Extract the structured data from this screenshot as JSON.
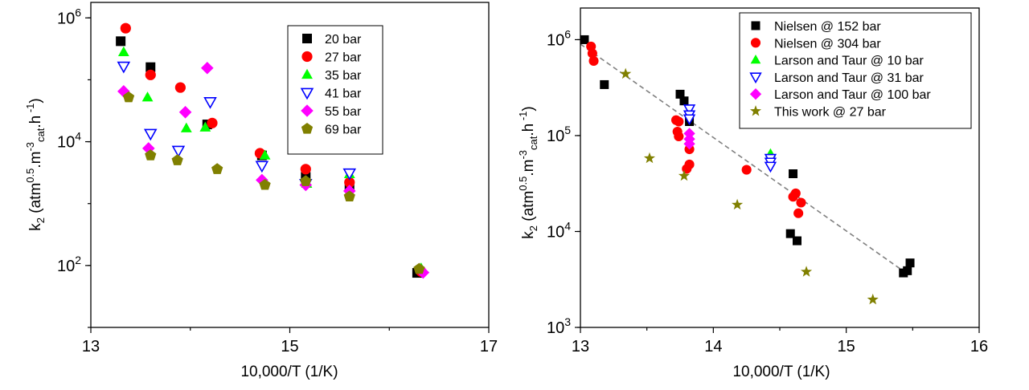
{
  "chart_data": [
    {
      "type": "scatter",
      "title": "",
      "xlabel": "10,000/T (1/K)",
      "ylabel": {
        "main": "k",
        "sub": "2",
        "paren_open": " (atm",
        "exp1": "0.5",
        "mid1": ".m",
        "exp2": "-3",
        "sub2": "cat",
        "mid2": ".h",
        "exp3": " -1",
        "paren_close": ")"
      },
      "x_range": [
        13,
        17
      ],
      "y_range_log": [
        1.0,
        6.25
      ],
      "y_scale": "log",
      "x_ticks": [
        "13",
        "15",
        "17"
      ],
      "y_ticks": [
        {
          "base": "10",
          "exp": "2",
          "log": 2
        },
        {
          "base": "10",
          "exp": "4",
          "log": 4
        },
        {
          "base": "10",
          "exp": "6",
          "log": 6
        }
      ],
      "legend_position": "top-right",
      "series": [
        {
          "name": "20 bar",
          "marker": "square",
          "color": "#000000",
          "points": [
            [
              13.3,
              420000
            ],
            [
              13.6,
              160000
            ],
            [
              14.17,
              19000
            ],
            [
              14.72,
              6000
            ],
            [
              15.16,
              2700
            ],
            [
              15.6,
              2000
            ],
            [
              16.28,
              76
            ]
          ]
        },
        {
          "name": "27 bar",
          "marker": "circle",
          "color": "#ff0000",
          "points": [
            [
              13.35,
              680000
            ],
            [
              13.6,
              120000
            ],
            [
              13.9,
              75000
            ],
            [
              14.22,
              20000
            ],
            [
              14.7,
              6500
            ],
            [
              15.16,
              3600
            ],
            [
              15.6,
              2200
            ],
            [
              16.32,
              80
            ]
          ]
        },
        {
          "name": "35 bar",
          "marker": "triangle-up",
          "color": "#00ff00",
          "points": [
            [
              13.33,
              280000
            ],
            [
              13.57,
              52000
            ],
            [
              13.96,
              16500
            ],
            [
              14.15,
              17000
            ],
            [
              14.75,
              6000
            ],
            [
              15.17,
              2100
            ],
            [
              15.6,
              3000
            ],
            [
              16.32,
              90
            ]
          ]
        },
        {
          "name": "41 bar",
          "marker": "triangle-down",
          "color": "#0000ff",
          "points": [
            [
              13.33,
              165000
            ],
            [
              13.6,
              13500
            ],
            [
              13.88,
              7200
            ],
            [
              14.2,
              44000
            ],
            [
              14.72,
              4100
            ],
            [
              15.16,
              2100
            ],
            [
              15.6,
              3100
            ]
          ]
        },
        {
          "name": "55 bar",
          "marker": "diamond",
          "color": "#ff00ff",
          "points": [
            [
              13.33,
              65000
            ],
            [
              13.58,
              7800
            ],
            [
              13.95,
              30000
            ],
            [
              14.17,
              155000
            ],
            [
              14.72,
              2400
            ],
            [
              15.16,
              2000
            ],
            [
              15.6,
              1600
            ],
            [
              16.34,
              77
            ]
          ]
        },
        {
          "name": "69 bar",
          "marker": "pentagon",
          "color": "#808000",
          "points": [
            [
              13.38,
              52000
            ],
            [
              13.6,
              6000
            ],
            [
              13.87,
              5000
            ],
            [
              14.27,
              3600
            ],
            [
              14.75,
              2000
            ],
            [
              15.16,
              2300
            ],
            [
              15.6,
              1300
            ],
            [
              16.3,
              88
            ]
          ]
        }
      ]
    },
    {
      "type": "scatter",
      "title": "",
      "xlabel": "10,000/T (1/K)",
      "ylabel": {
        "main": "k",
        "sub": "2",
        "paren_open": " (atm",
        "exp1": "0.5",
        "mid1": ".m",
        "exp2": "-3",
        "sub2": "cat",
        "mid2": ".h",
        "exp3": " -1",
        "paren_close": ")"
      },
      "x_range": [
        13,
        16
      ],
      "y_range_log": [
        3.0,
        6.33
      ],
      "y_scale": "log",
      "x_ticks": [
        "13",
        "14",
        "15",
        "16"
      ],
      "y_ticks": [
        {
          "base": "10",
          "exp": "3",
          "log": 3
        },
        {
          "base": "10",
          "exp": "4",
          "log": 4
        },
        {
          "base": "10",
          "exp": "5",
          "log": 5
        },
        {
          "base": "10",
          "exp": "6",
          "log": 6
        }
      ],
      "legend_position": "top-right",
      "fit_line": {
        "from": [
          13.0,
          900000
        ],
        "to": [
          15.45,
          3700
        ],
        "style": "dashed"
      },
      "series": [
        {
          "name": "Nielsen @ 152 bar",
          "marker": "square",
          "color": "#000000",
          "points": [
            [
              13.03,
              1000000
            ],
            [
              13.18,
              340000
            ],
            [
              13.75,
              270000
            ],
            [
              13.78,
              230000
            ],
            [
              13.82,
              140000
            ],
            [
              14.6,
              40000
            ],
            [
              14.58,
              9500
            ],
            [
              14.63,
              8000
            ],
            [
              15.43,
              3700
            ],
            [
              15.46,
              3900
            ],
            [
              15.48,
              4700
            ]
          ]
        },
        {
          "name": "Nielsen @ 304 bar",
          "marker": "circle",
          "color": "#ff0000",
          "points": [
            [
              13.08,
              850000
            ],
            [
              13.09,
              720000
            ],
            [
              13.1,
              600000
            ],
            [
              13.72,
              145000
            ],
            [
              13.74,
              140000
            ],
            [
              13.73,
              110000
            ],
            [
              13.74,
              98000
            ],
            [
              13.82,
              72000
            ],
            [
              13.82,
              50000
            ],
            [
              13.8,
              45000
            ],
            [
              14.25,
              44000
            ],
            [
              14.62,
              25000
            ],
            [
              14.6,
              23000
            ],
            [
              14.66,
              20000
            ],
            [
              14.64,
              15500
            ]
          ]
        },
        {
          "name": "Larson and Taur @ 10 bar",
          "marker": "triangle-up",
          "color": "#00ff00",
          "points": [
            [
              14.43,
              65000
            ]
          ]
        },
        {
          "name": "Larson and Taur @ 31 bar",
          "marker": "triangle-down",
          "color": "#0000ff",
          "points": [
            [
              13.82,
              190000
            ],
            [
              13.82,
              165000
            ],
            [
              13.82,
              150000
            ],
            [
              14.43,
              58000
            ],
            [
              14.43,
              53000
            ],
            [
              14.43,
              48000
            ]
          ]
        },
        {
          "name": "Larson and Taur @ 100 bar",
          "marker": "diamond",
          "color": "#ff00ff",
          "points": [
            [
              13.82,
              105000
            ],
            [
              13.82,
              92000
            ],
            [
              13.82,
              82000
            ]
          ]
        },
        {
          "name": "This work @ 27 bar",
          "marker": "star",
          "color": "#808000",
          "points": [
            [
              13.34,
              440000
            ],
            [
              13.52,
              58000
            ],
            [
              13.78,
              38000
            ],
            [
              14.18,
              19000
            ],
            [
              14.7,
              3800
            ],
            [
              15.2,
              1950
            ]
          ]
        }
      ]
    }
  ]
}
